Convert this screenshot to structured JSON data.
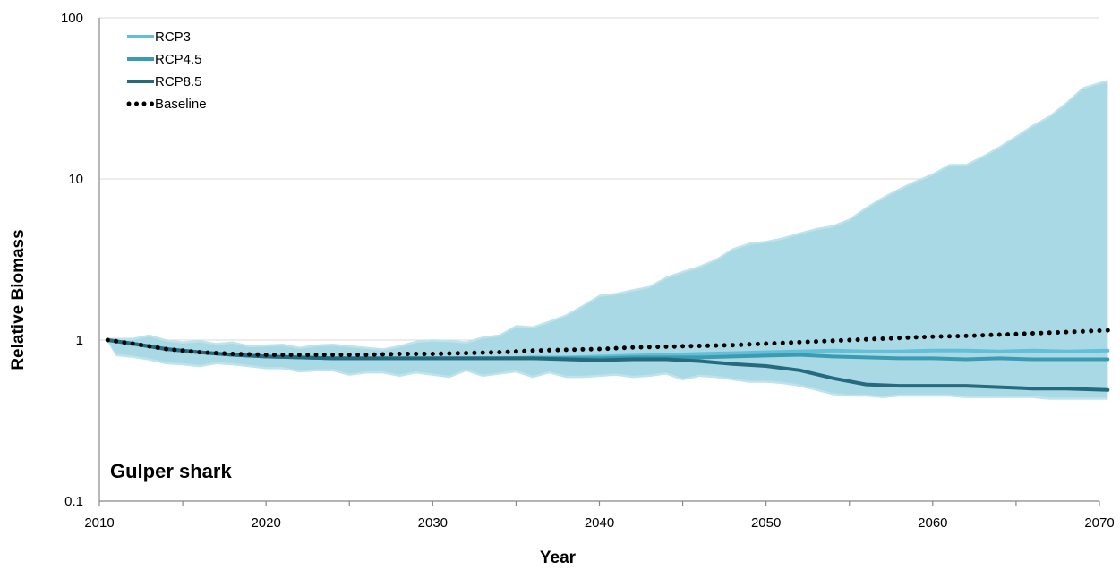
{
  "chart_data": {
    "type": "line",
    "title": "Gulper shark",
    "xlabel": "Year",
    "ylabel": "Relative Biomass",
    "yscale": "log",
    "xlim": [
      2010,
      2070
    ],
    "ylim": [
      0.1,
      100
    ],
    "x_ticks": [
      "2010",
      "2020",
      "2030",
      "2040",
      "2050",
      "2060",
      "2070"
    ],
    "y_ticks": [
      "0.1",
      "1",
      "10",
      "100"
    ],
    "grid": "horizontal",
    "legend": "top-left",
    "colors": {
      "RCP3": "#62bfd8",
      "RCP4.5": "#3b9bb2",
      "RCP8.5": "#266a7e",
      "Baseline": "#000000",
      "band_outer": "#bfe3ec",
      "band_inner": "#a9d9e5"
    },
    "band": {
      "x": [
        2010.5,
        2011,
        2012,
        2013,
        2014,
        2015,
        2016,
        2017,
        2018,
        2019,
        2020,
        2021,
        2022,
        2023,
        2024,
        2025,
        2026,
        2027,
        2028,
        2029,
        2030,
        2031,
        2032,
        2033,
        2034,
        2035,
        2036,
        2037,
        2038,
        2039,
        2040,
        2041,
        2042,
        2043,
        2044,
        2045,
        2046,
        2047,
        2048,
        2049,
        2050,
        2051,
        2052,
        2053,
        2054,
        2055,
        2056,
        2057,
        2058,
        2059,
        2060,
        2061,
        2062,
        2063,
        2064,
        2065,
        2066,
        2067,
        2068,
        2069,
        2070.5
      ],
      "upper": [
        1.0,
        1.0,
        1.0,
        1.05,
        0.98,
        0.95,
        0.97,
        0.93,
        0.95,
        0.9,
        0.91,
        0.92,
        0.88,
        0.91,
        0.92,
        0.9,
        0.88,
        0.86,
        0.9,
        0.96,
        0.98,
        0.97,
        0.95,
        1.02,
        1.05,
        1.2,
        1.18,
        1.28,
        1.4,
        1.6,
        1.85,
        1.9,
        2.0,
        2.1,
        2.4,
        2.6,
        2.8,
        3.1,
        3.6,
        3.9,
        4.0,
        4.2,
        4.5,
        4.8,
        5.0,
        5.5,
        6.5,
        7.5,
        8.5,
        9.5,
        10.5,
        12,
        12,
        13.5,
        15.5,
        18,
        21,
        24,
        29,
        36,
        40
      ],
      "lower": [
        1.0,
        0.82,
        0.8,
        0.77,
        0.73,
        0.72,
        0.7,
        0.73,
        0.72,
        0.7,
        0.68,
        0.68,
        0.65,
        0.66,
        0.66,
        0.62,
        0.64,
        0.64,
        0.61,
        0.64,
        0.62,
        0.6,
        0.66,
        0.61,
        0.63,
        0.65,
        0.6,
        0.64,
        0.6,
        0.6,
        0.61,
        0.62,
        0.6,
        0.61,
        0.63,
        0.58,
        0.61,
        0.6,
        0.58,
        0.56,
        0.56,
        0.55,
        0.53,
        0.5,
        0.47,
        0.46,
        0.46,
        0.45,
        0.46,
        0.46,
        0.46,
        0.46,
        0.45,
        0.45,
        0.45,
        0.45,
        0.45,
        0.44,
        0.44,
        0.44,
        0.44
      ]
    },
    "series": [
      {
        "name": "RCP3",
        "style": "solid",
        "x": [
          2010.5,
          2012,
          2014,
          2016,
          2018,
          2020,
          2022,
          2024,
          2026,
          2028,
          2030,
          2032,
          2034,
          2036,
          2038,
          2040,
          2042,
          2044,
          2046,
          2048,
          2050,
          2052,
          2054,
          2056,
          2058,
          2060,
          2062,
          2064,
          2066,
          2068,
          2070.5
        ],
        "y": [
          1.0,
          0.95,
          0.88,
          0.84,
          0.81,
          0.79,
          0.78,
          0.77,
          0.77,
          0.77,
          0.77,
          0.77,
          0.77,
          0.78,
          0.78,
          0.79,
          0.8,
          0.81,
          0.82,
          0.83,
          0.84,
          0.85,
          0.86,
          0.85,
          0.85,
          0.86,
          0.86,
          0.85,
          0.86,
          0.85,
          0.86
        ]
      },
      {
        "name": "RCP4.5",
        "style": "solid",
        "x": [
          2010.5,
          2012,
          2014,
          2016,
          2018,
          2020,
          2022,
          2024,
          2026,
          2028,
          2030,
          2032,
          2034,
          2036,
          2038,
          2040,
          2042,
          2044,
          2046,
          2048,
          2050,
          2052,
          2054,
          2056,
          2058,
          2060,
          2062,
          2064,
          2066,
          2068,
          2070.5
        ],
        "y": [
          1.0,
          0.95,
          0.88,
          0.84,
          0.81,
          0.79,
          0.78,
          0.77,
          0.77,
          0.77,
          0.77,
          0.77,
          0.77,
          0.77,
          0.77,
          0.77,
          0.78,
          0.78,
          0.78,
          0.79,
          0.8,
          0.81,
          0.79,
          0.78,
          0.77,
          0.77,
          0.76,
          0.77,
          0.76,
          0.76,
          0.76
        ]
      },
      {
        "name": "RCP8.5",
        "style": "solid",
        "x": [
          2010.5,
          2012,
          2014,
          2016,
          2018,
          2020,
          2022,
          2024,
          2026,
          2028,
          2030,
          2032,
          2034,
          2036,
          2038,
          2040,
          2042,
          2044,
          2046,
          2048,
          2050,
          2052,
          2054,
          2056,
          2058,
          2060,
          2062,
          2064,
          2066,
          2068,
          2070.5
        ],
        "y": [
          1.0,
          0.95,
          0.88,
          0.84,
          0.81,
          0.79,
          0.78,
          0.77,
          0.77,
          0.77,
          0.77,
          0.77,
          0.77,
          0.77,
          0.76,
          0.75,
          0.76,
          0.76,
          0.74,
          0.71,
          0.69,
          0.65,
          0.58,
          0.53,
          0.52,
          0.52,
          0.52,
          0.51,
          0.5,
          0.5,
          0.49
        ]
      },
      {
        "name": "Baseline",
        "style": "dotted",
        "x": [
          2010.5,
          2012,
          2014,
          2016,
          2018,
          2020,
          2022,
          2024,
          2026,
          2028,
          2030,
          2032,
          2034,
          2036,
          2038,
          2040,
          2042,
          2044,
          2046,
          2048,
          2050,
          2052,
          2054,
          2056,
          2058,
          2060,
          2062,
          2064,
          2066,
          2068,
          2070.5
        ],
        "y": [
          1.0,
          0.95,
          0.88,
          0.84,
          0.82,
          0.81,
          0.81,
          0.81,
          0.81,
          0.82,
          0.82,
          0.83,
          0.84,
          0.86,
          0.87,
          0.88,
          0.9,
          0.91,
          0.92,
          0.93,
          0.95,
          0.97,
          0.99,
          1.01,
          1.03,
          1.05,
          1.06,
          1.08,
          1.1,
          1.12,
          1.15
        ]
      }
    ]
  }
}
